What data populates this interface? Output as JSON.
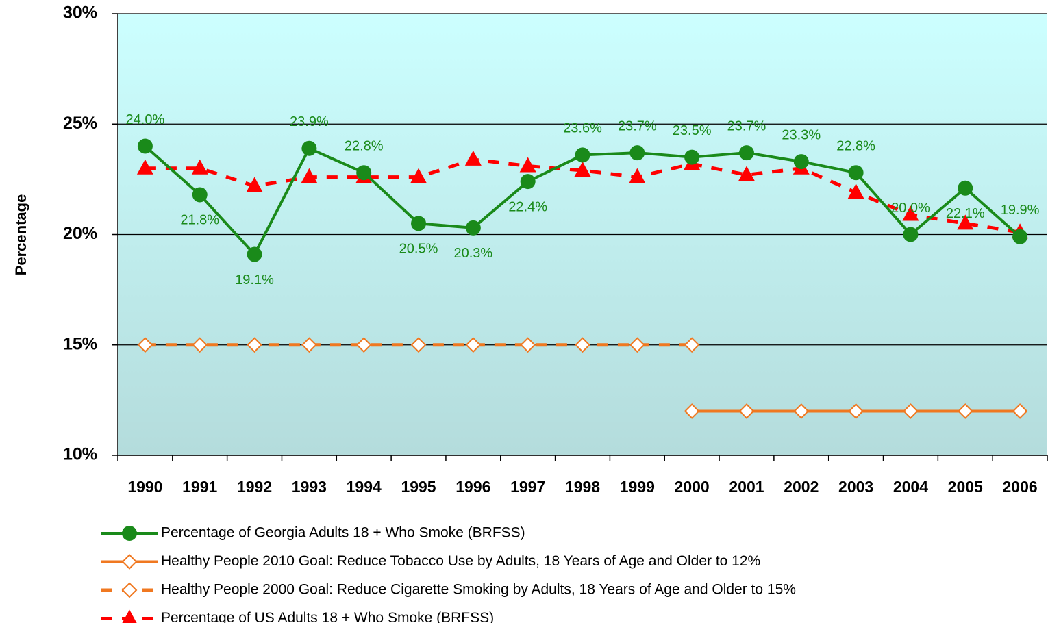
{
  "chart_data": {
    "type": "line",
    "y_label": "Percentage",
    "categories": [
      "1990",
      "1991",
      "1992",
      "1993",
      "1994",
      "1995",
      "1996",
      "1997",
      "1998",
      "1999",
      "2000",
      "2001",
      "2002",
      "2003",
      "2004",
      "2005",
      "2006"
    ],
    "ylim": [
      10,
      30
    ],
    "yticks": [
      {
        "value": 10,
        "label": "10%"
      },
      {
        "value": 15,
        "label": "15%"
      },
      {
        "value": 20,
        "label": "20%"
      },
      {
        "value": 25,
        "label": "25%"
      },
      {
        "value": 30,
        "label": "30%"
      }
    ],
    "grid": true,
    "legend": "bottom",
    "series": [
      {
        "name": "Percentage of Georgia Adults 18 + Who Smoke (BRFSS)",
        "color": "#1a8a1a",
        "marker": "circle",
        "dashed": false,
        "values": [
          24.0,
          21.8,
          19.1,
          23.9,
          22.8,
          20.5,
          20.3,
          22.4,
          23.6,
          23.7,
          23.5,
          23.7,
          23.3,
          22.8,
          20.0,
          22.1,
          19.9
        ],
        "value_labels": [
          "24.0%",
          "21.8%",
          "19.1%",
          "23.9%",
          "22.8%",
          "20.5%",
          "20.3%",
          "22.4%",
          "23.6%",
          "23.7%",
          "23.5%",
          "23.7%",
          "23.3%",
          "22.8%",
          "20.0%",
          "22.1%",
          "19.9%"
        ]
      },
      {
        "name": "Healthy People 2010 Goal:  Reduce Tobacco Use by Adults, 18 Years of Age and Older to 12%",
        "color": "#f07820",
        "marker": "diamond",
        "dashed": false,
        "values": [
          null,
          null,
          null,
          null,
          null,
          null,
          null,
          null,
          null,
          null,
          12,
          12,
          12,
          12,
          12,
          12,
          12
        ]
      },
      {
        "name": "Healthy People 2000 Goal:  Reduce Cigarette Smoking by Adults, 18 Years of Age and Older to 15%",
        "color": "#f07820",
        "marker": "diamond",
        "dashed": true,
        "values": [
          15,
          15,
          15,
          15,
          15,
          15,
          15,
          15,
          15,
          15,
          15,
          null,
          null,
          null,
          null,
          null,
          null
        ]
      },
      {
        "name": "Percentage of US Adults 18 + Who Smoke (BRFSS)",
        "color": "#ff0000",
        "marker": "triangle",
        "dashed": true,
        "values": [
          23.0,
          23.0,
          22.2,
          22.6,
          22.6,
          22.6,
          23.4,
          23.1,
          22.9,
          22.6,
          23.2,
          22.7,
          23.0,
          21.9,
          20.9,
          20.5,
          20.1
        ]
      }
    ]
  }
}
